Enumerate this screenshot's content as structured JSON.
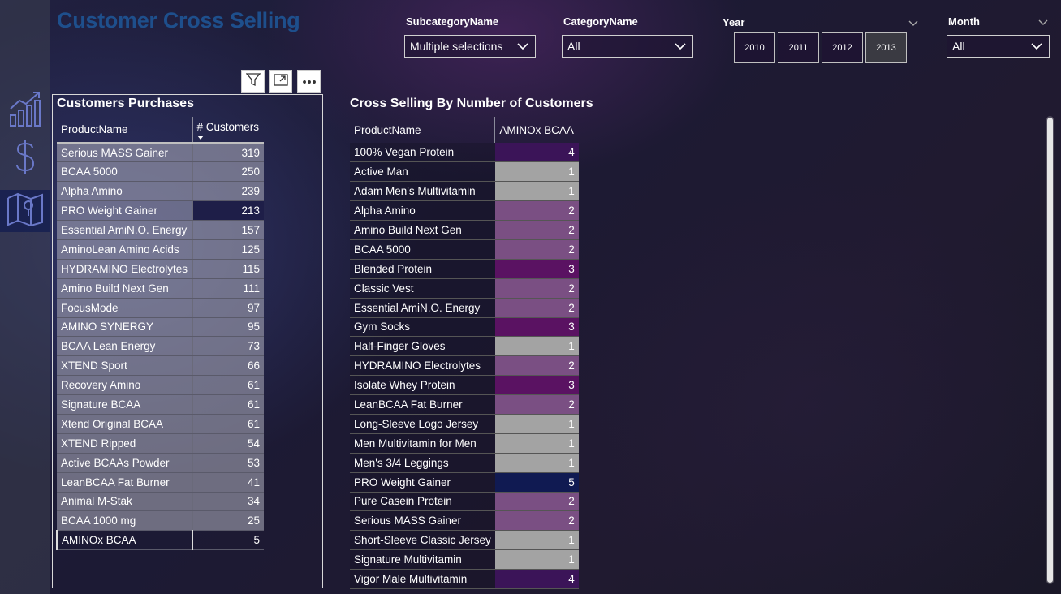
{
  "title": "Customer Cross Selling",
  "nav": [
    {
      "icon": "chart-icon"
    },
    {
      "icon": "dollar-icon"
    },
    {
      "icon": "map-icon"
    }
  ],
  "slicers": {
    "subcategory": {
      "label": "SubcategoryName",
      "value": "Multiple selections"
    },
    "category": {
      "label": "CategoryName",
      "value": "All"
    },
    "year": {
      "label": "Year",
      "options": [
        "2010",
        "2011",
        "2012",
        "2013"
      ],
      "selected": "2013"
    },
    "month": {
      "label": "Month",
      "value": "All"
    }
  },
  "purchases": {
    "title": "Customers Purchases",
    "headers": {
      "product": "ProductName",
      "customers": "# Customers"
    },
    "rows": [
      {
        "product": "Serious MASS Gainer",
        "customers": "319"
      },
      {
        "product": "BCAA 5000",
        "customers": "250"
      },
      {
        "product": "Alpha Amino",
        "customers": "239"
      },
      {
        "product": "PRO Weight Gainer",
        "customers": "213"
      },
      {
        "product": "Essential AmiN.O. Energy",
        "customers": "157"
      },
      {
        "product": "AminoLean Amino Acids",
        "customers": "125"
      },
      {
        "product": "HYDRAMINO Electrolytes",
        "customers": "115"
      },
      {
        "product": "Amino Build Next Gen",
        "customers": "111"
      },
      {
        "product": "FocusMode",
        "customers": "97"
      },
      {
        "product": "AMINO SYNERGY",
        "customers": "95"
      },
      {
        "product": "BCAA Lean Energy",
        "customers": "73"
      },
      {
        "product": "XTEND Sport",
        "customers": "66"
      },
      {
        "product": "Recovery Amino",
        "customers": "61"
      },
      {
        "product": "Signature BCAA",
        "customers": "61"
      },
      {
        "product": "Xtend Original BCAA",
        "customers": "61"
      },
      {
        "product": "XTEND Ripped",
        "customers": "54"
      },
      {
        "product": "Active BCAAs Powder",
        "customers": "53"
      },
      {
        "product": "LeanBCAA Fat Burner",
        "customers": "41"
      },
      {
        "product": "Animal M-Stak",
        "customers": "34"
      },
      {
        "product": "BCAA 1000 mg",
        "customers": "25"
      },
      {
        "product": "AMINOx BCAA",
        "customers": "5"
      }
    ]
  },
  "cross": {
    "title": "Cross Selling By Number of Customers",
    "headers": {
      "product": "ProductName",
      "column": "AMINOx BCAA"
    },
    "rows": [
      {
        "product": "100% Vegan Protein",
        "value": "4"
      },
      {
        "product": "Active Man",
        "value": "1"
      },
      {
        "product": "Adam Men's Multivitamin",
        "value": "1"
      },
      {
        "product": "Alpha Amino",
        "value": "2"
      },
      {
        "product": "Amino Build Next Gen",
        "value": "2"
      },
      {
        "product": "BCAA 5000",
        "value": "2"
      },
      {
        "product": "Blended Protein",
        "value": "3"
      },
      {
        "product": "Classic Vest",
        "value": "2"
      },
      {
        "product": "Essential AmiN.O. Energy",
        "value": "2"
      },
      {
        "product": "Gym Socks",
        "value": "3"
      },
      {
        "product": "Half-Finger Gloves",
        "value": "1"
      },
      {
        "product": "HYDRAMINO Electrolytes",
        "value": "2"
      },
      {
        "product": "Isolate Whey Protein",
        "value": "3"
      },
      {
        "product": "LeanBCAA Fat Burner",
        "value": "2"
      },
      {
        "product": "Long-Sleeve Logo Jersey",
        "value": "1"
      },
      {
        "product": "Men Multivitamin for Men",
        "value": "1"
      },
      {
        "product": "Men's 3/4 Leggings",
        "value": "1"
      },
      {
        "product": "PRO Weight Gainer",
        "value": "5"
      },
      {
        "product": "Pure Casein Protein",
        "value": "2"
      },
      {
        "product": "Serious MASS Gainer",
        "value": "2"
      },
      {
        "product": "Short-Sleeve Classic Jersey",
        "value": "1"
      },
      {
        "product": "Signature Multivitamin",
        "value": "1"
      },
      {
        "product": "Vigor Male Multivitamin",
        "value": "4"
      }
    ]
  },
  "colors": {
    "title": "#1e4f8c",
    "heat_1": "#a3a3a3",
    "heat_2": "#7a4f83",
    "heat_3": "#5a1262",
    "heat_4": "#3b1458",
    "heat_5": "#101a52"
  }
}
